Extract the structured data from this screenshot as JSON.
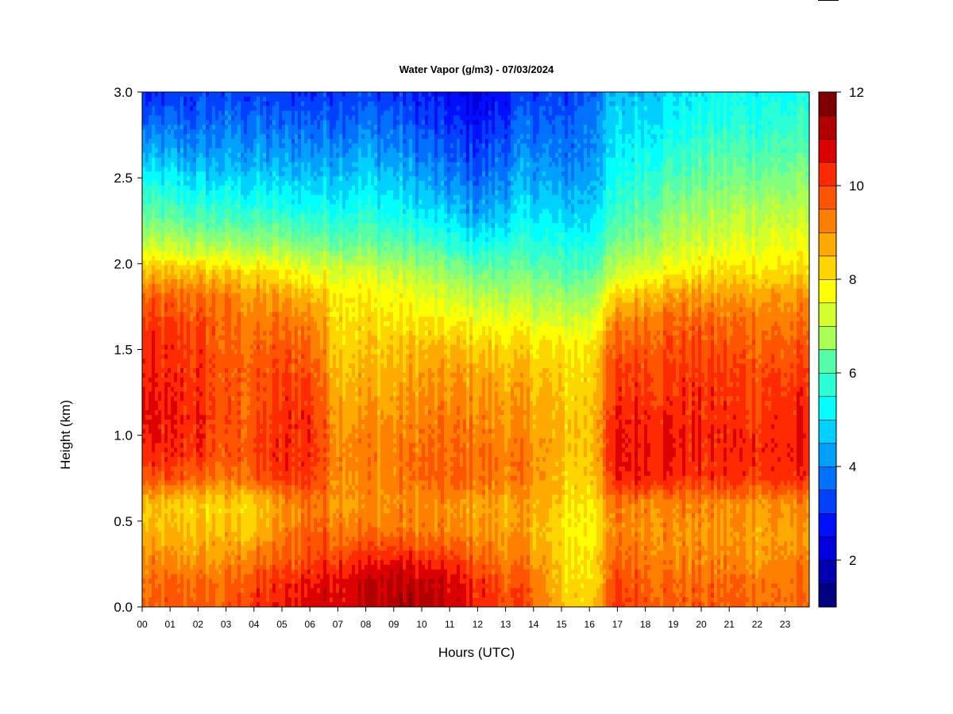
{
  "chart_data": {
    "type": "heatmap",
    "title": "Water Vapor (g/m3) - 07/03/2024",
    "xlabel": "Hours (UTC)",
    "ylabel": "Height (km)",
    "x_ticks": [
      "00",
      "01",
      "02",
      "03",
      "04",
      "05",
      "06",
      "07",
      "08",
      "09",
      "10",
      "11",
      "12",
      "13",
      "14",
      "15",
      "16",
      "17",
      "18",
      "19",
      "20",
      "21",
      "22",
      "23"
    ],
    "xlim": [
      0,
      24
    ],
    "y_ticks": [
      "0.0",
      "0.5",
      "1.0",
      "1.5",
      "2.0",
      "2.5",
      "3.0"
    ],
    "ylim": [
      0,
      3
    ],
    "colorbar": {
      "ticks": [
        "2",
        "4",
        "6",
        "8",
        "10",
        "12"
      ],
      "range": [
        1,
        12
      ],
      "levels": 22,
      "palette": [
        "#000080",
        "#0000b0",
        "#0000dd",
        "#0010ff",
        "#0040ff",
        "#0070ff",
        "#00a0ff",
        "#00d0ff",
        "#00ffff",
        "#2affd5",
        "#55ffaa",
        "#80ff80",
        "#aaff55",
        "#d5ff2a",
        "#ffff00",
        "#ffd500",
        "#ffaa00",
        "#ff8000",
        "#ff5500",
        "#ff2a00",
        "#dd0000",
        "#b00000",
        "#800000"
      ]
    },
    "heights_km": [
      0.0,
      0.15,
      0.3,
      0.45,
      0.6,
      0.75,
      0.9,
      1.05,
      1.2,
      1.35,
      1.5,
      1.65,
      1.8,
      1.95,
      2.1,
      2.25,
      2.4,
      2.55,
      2.7,
      2.85,
      3.0
    ],
    "hours_utc": [
      0,
      1,
      2,
      3,
      4,
      5,
      6,
      7,
      8,
      9,
      10,
      11,
      12,
      13,
      14,
      15,
      16,
      17,
      18,
      19,
      20,
      21,
      22,
      23,
      24
    ],
    "values": [
      [
        9.5,
        9.8,
        9.8,
        9.8,
        10.3,
        10.5,
        10.8,
        11.0,
        11.0,
        11.3,
        11.2,
        11.0,
        10.5,
        10.0,
        9.8,
        8.5,
        8.5,
        10.2,
        10.0,
        9.8,
        9.8,
        9.8,
        9.6,
        9.6,
        9.6
      ],
      [
        9.4,
        9.6,
        9.6,
        9.6,
        10.0,
        10.2,
        10.6,
        10.8,
        11.0,
        11.2,
        11.0,
        10.8,
        10.3,
        9.9,
        9.6,
        8.4,
        8.3,
        10.0,
        9.9,
        9.6,
        9.6,
        9.6,
        9.5,
        9.5,
        9.5
      ],
      [
        9.2,
        9.0,
        9.0,
        9.0,
        9.4,
        9.6,
        10.0,
        10.2,
        10.3,
        10.4,
        10.2,
        10.0,
        9.6,
        9.4,
        9.2,
        8.3,
        8.2,
        9.6,
        9.5,
        9.3,
        9.2,
        9.2,
        9.1,
        9.2,
        9.2
      ],
      [
        8.6,
        8.6,
        8.6,
        8.6,
        8.6,
        9.2,
        9.8,
        9.5,
        9.5,
        9.5,
        9.4,
        9.2,
        9.2,
        9.0,
        8.9,
        8.1,
        8.0,
        9.4,
        9.4,
        9.2,
        9.1,
        9.1,
        9.0,
        9.0,
        9.0
      ],
      [
        8.6,
        8.4,
        8.4,
        8.4,
        8.4,
        9.0,
        9.6,
        9.2,
        9.2,
        9.2,
        9.2,
        9.1,
        9.0,
        8.9,
        8.9,
        8.3,
        8.2,
        9.4,
        9.4,
        9.3,
        9.3,
        9.2,
        9.2,
        9.2,
        9.2
      ],
      [
        9.8,
        9.8,
        9.8,
        9.4,
        9.8,
        10.2,
        10.3,
        9.3,
        9.3,
        9.3,
        9.6,
        9.6,
        9.6,
        9.4,
        9.3,
        8.5,
        8.5,
        10.4,
        10.6,
        10.4,
        10.2,
        10.3,
        10.2,
        10.3,
        10.3
      ],
      [
        10.3,
        10.3,
        10.3,
        9.7,
        10.0,
        10.3,
        10.4,
        9.4,
        9.4,
        9.4,
        9.6,
        9.6,
        9.6,
        9.4,
        9.3,
        8.6,
        8.6,
        10.6,
        10.8,
        10.6,
        10.4,
        10.4,
        10.5,
        10.5,
        10.5
      ],
      [
        10.6,
        10.4,
        10.4,
        9.8,
        9.9,
        10.3,
        10.4,
        9.2,
        9.2,
        9.2,
        9.4,
        9.4,
        9.4,
        9.2,
        9.1,
        8.6,
        8.6,
        10.5,
        10.6,
        10.5,
        10.4,
        10.3,
        10.3,
        10.4,
        10.4
      ],
      [
        10.6,
        10.4,
        10.4,
        9.8,
        9.8,
        10.2,
        10.3,
        9.0,
        9.0,
        9.0,
        9.2,
        9.2,
        9.2,
        9.0,
        8.9,
        8.5,
        8.5,
        10.3,
        10.4,
        10.3,
        10.3,
        10.2,
        10.2,
        10.3,
        10.3
      ],
      [
        10.5,
        10.3,
        10.3,
        9.8,
        9.8,
        10.0,
        10.1,
        8.8,
        8.8,
        8.8,
        9.0,
        9.0,
        9.0,
        8.8,
        8.7,
        8.4,
        8.4,
        10.1,
        10.2,
        10.2,
        10.2,
        10.1,
        10.0,
        10.1,
        10.1
      ],
      [
        10.3,
        10.2,
        10.2,
        9.7,
        9.6,
        9.8,
        9.8,
        8.6,
        8.6,
        8.6,
        8.7,
        8.7,
        8.6,
        8.4,
        8.3,
        8.2,
        8.2,
        9.8,
        9.9,
        10.0,
        10.0,
        9.9,
        9.8,
        9.8,
        9.8
      ],
      [
        10.1,
        10.0,
        10.0,
        9.6,
        9.4,
        9.5,
        9.4,
        8.4,
        8.3,
        8.2,
        8.2,
        8.1,
        8.0,
        7.9,
        7.8,
        7.5,
        7.6,
        9.4,
        9.6,
        9.7,
        9.7,
        9.6,
        9.6,
        9.5,
        9.5
      ],
      [
        9.6,
        9.6,
        9.6,
        9.4,
        9.1,
        9.0,
        8.8,
        8.3,
        8.1,
        7.9,
        7.7,
        7.4,
        7.2,
        7.1,
        7.0,
        6.8,
        6.9,
        8.4,
        8.9,
        9.1,
        9.1,
        9.1,
        9.1,
        9.1,
        9.1
      ],
      [
        8.6,
        8.6,
        8.6,
        8.5,
        8.3,
        8.1,
        7.8,
        7.7,
        7.5,
        7.3,
        7.0,
        6.6,
        6.3,
        6.3,
        6.3,
        6.0,
        6.1,
        7.3,
        7.8,
        8.1,
        8.2,
        8.3,
        8.3,
        8.3,
        8.3
      ],
      [
        7.4,
        7.2,
        7.1,
        7.0,
        6.9,
        6.8,
        6.6,
        6.5,
        6.4,
        6.2,
        6.0,
        5.6,
        5.2,
        5.5,
        5.6,
        5.3,
        5.4,
        6.4,
        7.0,
        7.3,
        7.5,
        7.6,
        7.7,
        7.7,
        7.7
      ],
      [
        6.4,
        6.2,
        6.0,
        5.9,
        5.9,
        5.8,
        5.6,
        5.6,
        5.6,
        5.4,
        5.1,
        4.8,
        4.3,
        4.7,
        5.0,
        4.7,
        4.8,
        5.8,
        6.4,
        6.8,
        7.0,
        7.2,
        7.3,
        7.3,
        7.3
      ],
      [
        5.6,
        5.4,
        5.2,
        5.1,
        5.1,
        5.0,
        4.9,
        4.9,
        5.0,
        4.8,
        4.5,
        4.1,
        3.8,
        4.2,
        4.6,
        4.2,
        4.4,
        5.4,
        5.9,
        6.3,
        6.5,
        6.7,
        6.8,
        6.8,
        6.8
      ],
      [
        4.8,
        4.6,
        4.4,
        4.4,
        4.4,
        4.3,
        4.3,
        4.4,
        4.5,
        4.3,
        4.0,
        3.6,
        3.4,
        3.8,
        4.2,
        3.8,
        4.1,
        5.1,
        5.5,
        5.8,
        6.0,
        6.2,
        6.3,
        6.3,
        6.3
      ],
      [
        4.0,
        3.9,
        3.8,
        3.9,
        3.9,
        3.8,
        3.8,
        3.9,
        4.0,
        3.8,
        3.5,
        3.2,
        3.0,
        3.4,
        3.8,
        3.5,
        3.9,
        4.8,
        5.1,
        5.4,
        5.6,
        5.8,
        5.8,
        5.8,
        5.8
      ],
      [
        3.3,
        3.4,
        3.4,
        3.5,
        3.5,
        3.4,
        3.4,
        3.5,
        3.6,
        3.4,
        3.1,
        2.8,
        2.6,
        3.0,
        3.5,
        3.2,
        3.7,
        4.6,
        4.8,
        5.0,
        5.2,
        5.4,
        5.5,
        5.5,
        5.5
      ],
      [
        2.6,
        2.9,
        3.0,
        3.1,
        3.1,
        3.0,
        3.0,
        3.1,
        3.2,
        3.0,
        2.7,
        2.4,
        2.3,
        2.7,
        3.2,
        3.0,
        3.5,
        4.4,
        4.6,
        4.8,
        5.0,
        5.2,
        5.2,
        5.2,
        5.2
      ]
    ]
  }
}
